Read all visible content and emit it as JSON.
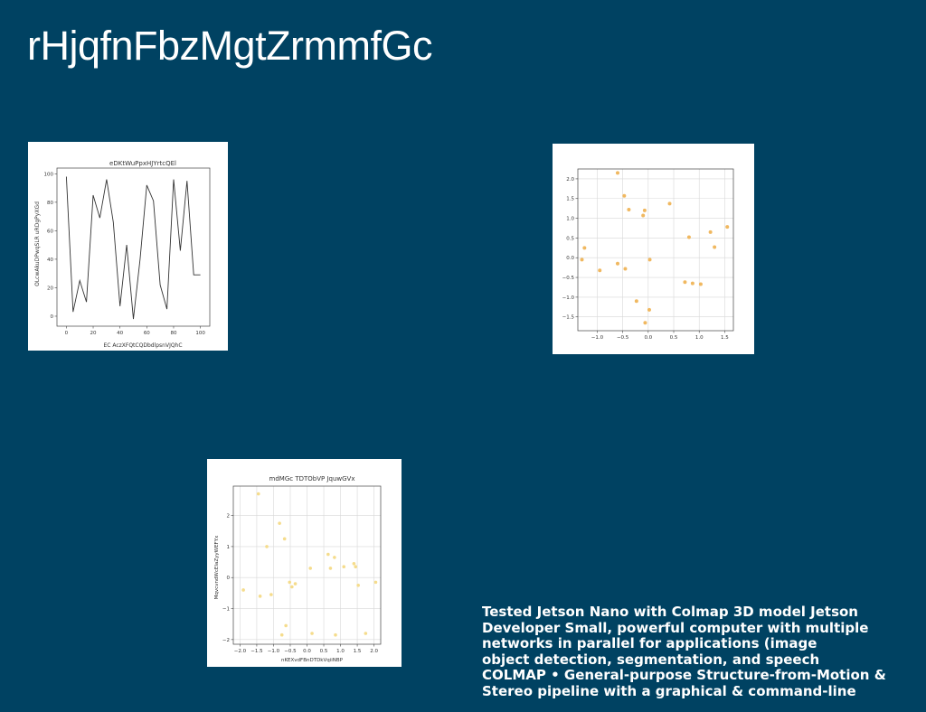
{
  "slide": {
    "title": "rHjqfnFbzMgtZrmmfGc",
    "caption_lines": [
      "Tested Jetson Nano with Colmap 3D model Jetson",
      "Developer Small, powerful computer with multiple",
      "networks in parallel for applications (image",
      "object detection, segmentation, and speech",
      "COLMAP • General-purpose Structure-from-Motion &",
      "Stereo pipeline with a graphical & command-line"
    ]
  },
  "chart_data": [
    {
      "type": "line",
      "title": "eDKtWuPpxHJYrtcQEl",
      "xlabel": "EC AczXFQtCQDbdlpsnVJQhC",
      "ylabel": "OLcwAkuDPwqSLR uRDgPyXGd",
      "xlim": [
        -7,
        107
      ],
      "ylim": [
        -7,
        104
      ],
      "xticks": [
        0,
        20,
        40,
        60,
        80,
        100
      ],
      "yticks": [
        0,
        20,
        40,
        60,
        80,
        100
      ],
      "grid": false,
      "color": "#333333",
      "x": [
        0,
        5,
        10,
        15,
        20,
        25,
        30,
        35,
        40,
        45,
        50,
        55,
        60,
        65,
        70,
        75,
        80,
        85,
        90,
        95,
        100
      ],
      "y": [
        98,
        3,
        25,
        10,
        85,
        69,
        96,
        66,
        7,
        50,
        -2,
        40,
        92,
        81,
        22,
        5,
        96,
        46,
        95,
        29,
        29
      ]
    },
    {
      "type": "scatter",
      "title": "",
      "xlabel": "",
      "ylabel": "",
      "xlim": [
        -1.38,
        1.67
      ],
      "ylim": [
        -1.85,
        2.25
      ],
      "xticks": [
        -1.0,
        -0.5,
        0.0,
        0.5,
        1.0,
        1.5
      ],
      "yticks": [
        -1.5,
        -1.0,
        -0.5,
        0.0,
        0.5,
        1.0,
        1.5,
        2.0
      ],
      "grid": true,
      "color": "#f0b860",
      "points": [
        [
          -1.3,
          -0.05
        ],
        [
          -1.25,
          0.25
        ],
        [
          -0.95,
          -0.32
        ],
        [
          -0.6,
          2.15
        ],
        [
          -0.6,
          -0.15
        ],
        [
          -0.47,
          1.57
        ],
        [
          -0.45,
          -0.28
        ],
        [
          -0.38,
          1.22
        ],
        [
          -0.23,
          -1.1
        ],
        [
          -0.1,
          1.07
        ],
        [
          -0.07,
          1.2
        ],
        [
          -0.06,
          -1.65
        ],
        [
          0.02,
          -1.32
        ],
        [
          0.03,
          -0.05
        ],
        [
          0.42,
          1.37
        ],
        [
          0.72,
          -0.62
        ],
        [
          0.8,
          0.52
        ],
        [
          0.87,
          -0.65
        ],
        [
          1.03,
          -0.67
        ],
        [
          1.22,
          0.65
        ],
        [
          1.3,
          0.27
        ],
        [
          1.55,
          0.78
        ]
      ]
    },
    {
      "type": "scatter",
      "title": "mdMGc  TDTObVP JquwGVx",
      "xlabel": "nKEXvdFBnDTDkVqiiNBP",
      "ylabel": "MqvcvndWcEIaZyyWEFYx",
      "xlim": [
        -2.2,
        2.2
      ],
      "ylim": [
        -2.15,
        2.95
      ],
      "xticks": [
        -2.0,
        -1.5,
        -1.0,
        -0.5,
        0.0,
        0.5,
        1.0,
        1.5,
        2.0
      ],
      "yticks": [
        -2,
        -1,
        0,
        1,
        2
      ],
      "grid": true,
      "color": "#f5dc8c",
      "points": [
        [
          -1.9,
          -0.4
        ],
        [
          -1.45,
          2.7
        ],
        [
          -1.4,
          -0.6
        ],
        [
          -1.2,
          1.0
        ],
        [
          -1.07,
          -0.55
        ],
        [
          -0.82,
          1.75
        ],
        [
          -0.75,
          -1.85
        ],
        [
          -0.67,
          1.25
        ],
        [
          -0.63,
          -1.55
        ],
        [
          -0.52,
          -0.15
        ],
        [
          -0.45,
          -0.3
        ],
        [
          -0.35,
          -0.2
        ],
        [
          0.1,
          0.3
        ],
        [
          0.15,
          -1.8
        ],
        [
          0.63,
          0.75
        ],
        [
          0.7,
          0.3
        ],
        [
          0.82,
          0.65
        ],
        [
          0.85,
          -1.85
        ],
        [
          1.1,
          0.35
        ],
        [
          1.4,
          0.45
        ],
        [
          1.45,
          0.35
        ],
        [
          1.53,
          -0.25
        ],
        [
          1.75,
          -1.8
        ],
        [
          2.05,
          -0.15
        ]
      ]
    }
  ]
}
